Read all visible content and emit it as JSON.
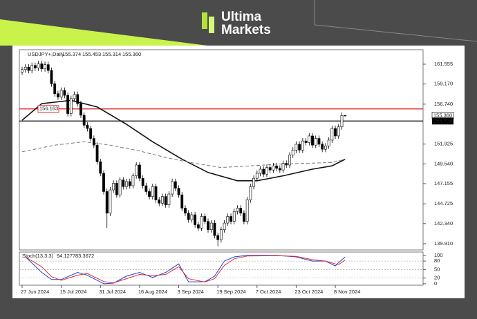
{
  "brand": {
    "line1": "Ultima",
    "line2": "Markets"
  },
  "chart_data": {
    "type": "candlestick",
    "header": {
      "symbol": "USDJPY+,Daily",
      "ohlc_labels": [
        "155.374",
        "155.453",
        "155.314",
        "155.360"
      ]
    },
    "ohlc": [
      [
        160.6,
        161.25,
        160.25,
        160.9
      ],
      [
        160.9,
        161.55,
        160.55,
        161.2
      ],
      [
        161.2,
        161.55,
        160.45,
        160.8
      ],
      [
        160.8,
        161.75,
        160.45,
        161.4
      ],
      [
        161.4,
        161.75,
        160.75,
        161.1
      ],
      [
        161.1,
        161.95,
        160.75,
        161.6
      ],
      [
        161.6,
        161.95,
        160.65,
        161.0
      ],
      [
        161.0,
        161.85,
        160.65,
        161.5
      ],
      [
        161.5,
        161.85,
        160.45,
        160.8
      ],
      [
        160.8,
        161.15,
        158.85,
        159.2
      ],
      [
        159.2,
        159.55,
        157.65,
        158.0
      ],
      [
        158.0,
        158.35,
        157.25,
        157.6
      ],
      [
        157.6,
        158.75,
        157.25,
        158.4
      ],
      [
        158.4,
        158.75,
        157.45,
        157.8
      ],
      [
        157.8,
        158.15,
        155.25,
        155.6
      ],
      [
        155.6,
        157.75,
        155.25,
        157.4
      ],
      [
        157.4,
        158.25,
        157.05,
        157.9
      ],
      [
        157.9,
        158.25,
        156.45,
        156.8
      ],
      [
        156.8,
        157.15,
        155.05,
        155.4
      ],
      [
        155.4,
        155.75,
        153.85,
        154.2
      ],
      [
        154.2,
        154.55,
        153.45,
        153.8
      ],
      [
        153.8,
        154.15,
        152.25,
        152.6
      ],
      [
        152.6,
        152.95,
        151.45,
        151.8
      ],
      [
        151.8,
        152.15,
        149.45,
        149.8
      ],
      [
        149.8,
        150.15,
        148.05,
        148.4
      ],
      [
        148.4,
        148.75,
        145.85,
        146.2
      ],
      [
        146.2,
        146.55,
        141.8,
        143.6
      ],
      [
        143.6,
        146.75,
        143.25,
        146.4
      ],
      [
        146.4,
        147.55,
        146.05,
        147.2
      ],
      [
        147.2,
        147.55,
        145.45,
        145.8
      ],
      [
        145.8,
        147.95,
        145.45,
        147.6
      ],
      [
        147.6,
        147.95,
        146.45,
        146.8
      ],
      [
        146.8,
        147.75,
        146.45,
        147.4
      ],
      [
        147.4,
        147.75,
        146.55,
        146.9
      ],
      [
        146.9,
        148.45,
        146.55,
        148.1
      ],
      [
        148.1,
        149.75,
        147.75,
        149.4
      ],
      [
        149.4,
        149.75,
        147.45,
        147.8
      ],
      [
        147.8,
        148.15,
        146.55,
        146.9
      ],
      [
        146.9,
        147.25,
        145.85,
        146.2
      ],
      [
        146.2,
        146.55,
        145.25,
        145.6
      ],
      [
        145.6,
        147.15,
        145.25,
        146.8
      ],
      [
        146.8,
        147.15,
        144.85,
        145.2
      ],
      [
        145.2,
        145.55,
        144.45,
        144.8
      ],
      [
        144.8,
        145.95,
        144.45,
        145.6
      ],
      [
        145.6,
        145.95,
        144.25,
        144.6
      ],
      [
        144.6,
        146.25,
        144.25,
        145.9
      ],
      [
        145.9,
        147.75,
        145.55,
        147.4
      ],
      [
        147.4,
        147.75,
        146.25,
        146.6
      ],
      [
        146.6,
        146.95,
        145.45,
        145.8
      ],
      [
        145.8,
        146.15,
        143.85,
        144.2
      ],
      [
        144.2,
        144.55,
        143.25,
        143.6
      ],
      [
        143.6,
        143.95,
        142.45,
        142.8
      ],
      [
        142.8,
        143.75,
        142.45,
        143.4
      ],
      [
        143.4,
        143.75,
        141.85,
        142.2
      ],
      [
        142.2,
        142.55,
        141.45,
        141.8
      ],
      [
        141.8,
        143.55,
        141.45,
        143.2
      ],
      [
        143.2,
        143.55,
        142.25,
        142.6
      ],
      [
        142.6,
        142.95,
        141.25,
        141.6
      ],
      [
        141.6,
        142.75,
        141.25,
        142.4
      ],
      [
        142.4,
        142.75,
        140.55,
        140.9
      ],
      [
        140.9,
        141.25,
        139.6,
        140.4
      ],
      [
        140.4,
        141.95,
        140.05,
        141.6
      ],
      [
        141.6,
        142.75,
        141.25,
        142.4
      ],
      [
        142.4,
        143.55,
        142.05,
        143.2
      ],
      [
        143.2,
        143.55,
        142.25,
        142.6
      ],
      [
        142.6,
        144.15,
        142.25,
        143.8
      ],
      [
        143.8,
        144.55,
        143.45,
        144.2
      ],
      [
        144.2,
        144.55,
        143.25,
        143.6
      ],
      [
        143.6,
        143.95,
        142.25,
        142.6
      ],
      [
        142.6,
        145.55,
        142.25,
        145.2
      ],
      [
        145.2,
        147.15,
        144.85,
        146.8
      ],
      [
        146.8,
        148.15,
        146.45,
        147.8
      ],
      [
        147.8,
        148.75,
        147.45,
        148.4
      ],
      [
        148.4,
        149.25,
        148.05,
        148.9
      ],
      [
        148.9,
        149.25,
        147.95,
        148.3
      ],
      [
        148.3,
        149.45,
        147.95,
        149.1
      ],
      [
        149.1,
        149.45,
        148.45,
        148.8
      ],
      [
        148.8,
        149.65,
        148.45,
        149.3
      ],
      [
        149.3,
        149.65,
        148.65,
        149.0
      ],
      [
        149.0,
        149.35,
        148.45,
        148.8
      ],
      [
        148.8,
        149.95,
        148.45,
        149.6
      ],
      [
        149.6,
        149.95,
        149.05,
        149.4
      ],
      [
        149.4,
        150.95,
        149.05,
        150.6
      ],
      [
        150.6,
        151.55,
        150.25,
        151.2
      ],
      [
        151.2,
        152.25,
        150.85,
        151.9
      ],
      [
        151.9,
        152.25,
        150.85,
        151.2
      ],
      [
        151.2,
        152.65,
        150.85,
        152.3
      ],
      [
        152.3,
        152.65,
        151.75,
        152.1
      ],
      [
        152.1,
        153.25,
        151.75,
        152.9
      ],
      [
        152.9,
        153.25,
        151.45,
        151.8
      ],
      [
        151.8,
        152.95,
        151.45,
        152.6
      ],
      [
        152.6,
        152.95,
        151.55,
        151.9
      ],
      [
        151.9,
        152.25,
        150.95,
        151.3
      ],
      [
        151.3,
        152.05,
        150.95,
        151.7
      ],
      [
        151.7,
        152.75,
        151.35,
        152.4
      ],
      [
        152.4,
        154.15,
        152.05,
        153.8
      ],
      [
        153.8,
        154.15,
        152.55,
        152.9
      ],
      [
        152.9,
        154.35,
        152.55,
        154.0
      ],
      [
        154.0,
        155.72,
        153.65,
        155.37
      ],
      [
        155.374,
        155.453,
        155.314,
        155.36
      ]
    ],
    "xlim": [
      -0.85,
      122.9
    ],
    "xticks": [
      {
        "value": 0,
        "label": "27 Jun 2024"
      },
      {
        "value": 12,
        "label": "15 Jul 2024"
      },
      {
        "value": 24,
        "label": "31 Jul 2024"
      },
      {
        "value": 36,
        "label": "16 Aug 2024"
      },
      {
        "value": 48,
        "label": "3 Sep 2024"
      },
      {
        "value": 60,
        "label": "19 Sep 2024"
      },
      {
        "value": 72,
        "label": "7 Oct 2024"
      },
      {
        "value": 84,
        "label": "23 Oct 2024"
      },
      {
        "value": 96,
        "label": "8 Nov 2024"
      }
    ],
    "ylim": [
      139.16,
      163.3
    ],
    "yticks": [
      161.555,
      {
        "value": 159.17,
        "label": "159.170"
      },
      {
        "value": 156.74,
        "label": "156.740"
      },
      151.925,
      {
        "value": 149.54,
        "label": "149.540"
      },
      147.155,
      144.725,
      {
        "value": 142.34,
        "label": "142.340"
      },
      {
        "value": 139.91,
        "label": "139.910"
      }
    ],
    "levels": [
      {
        "value": 156.163,
        "color": "#e01010"
      },
      {
        "value": 154.704,
        "color": "#000000"
      }
    ],
    "moving_averages": [
      {
        "color": "#111111",
        "dashed": false,
        "x": [
          0,
          6,
          15,
          23,
          32,
          40,
          49,
          57,
          66,
          72,
          80,
          89,
          95,
          99
        ],
        "values": [
          154.8,
          156.8,
          157.2,
          156.4,
          154.3,
          152.2,
          150.1,
          148.5,
          147.5,
          147.5,
          148.1,
          148.9,
          149.3,
          150.1
        ]
      },
      {
        "color": "#777777",
        "dashed": true,
        "x": [
          0,
          10,
          19,
          27,
          36,
          44,
          53,
          61,
          70,
          78,
          86,
          95,
          99
        ],
        "values": [
          151.0,
          151.8,
          152.2,
          151.8,
          151.1,
          150.3,
          149.6,
          149.1,
          149.3,
          149.5,
          149.6,
          149.7,
          150.1
        ]
      }
    ],
    "stochastic": {
      "label": "Stoch(13,3,3)",
      "value_labels": [
        "94.1277",
        "83.3672"
      ],
      "ylim": [
        -5,
        112
      ],
      "yticks": [
        100,
        80,
        50,
        20,
        0
      ],
      "levels": [
        80,
        50,
        20
      ],
      "x": [
        1,
        6,
        9,
        12,
        17,
        20,
        25,
        28,
        32,
        36,
        40,
        44,
        48,
        51,
        56,
        59,
        62,
        65,
        69,
        78,
        84,
        89,
        93,
        96,
        97,
        99
      ],
      "series": [
        {
          "color": "#1f3fd0",
          "values": [
            95,
            40,
            15,
            15,
            40,
            30,
            0,
            2,
            27,
            40,
            22,
            40,
            70,
            7,
            7,
            27,
            80,
            95,
            100,
            100,
            95,
            80,
            80,
            63,
            75,
            94.1277
          ]
        },
        {
          "color": "#e03030",
          "values": [
            95,
            60,
            25,
            12,
            30,
            36,
            8,
            3,
            18,
            33,
            28,
            33,
            60,
            18,
            6,
            18,
            65,
            88,
            98,
            99,
            97,
            85,
            80,
            70,
            68,
            83.3672
          ]
        }
      ]
    }
  }
}
